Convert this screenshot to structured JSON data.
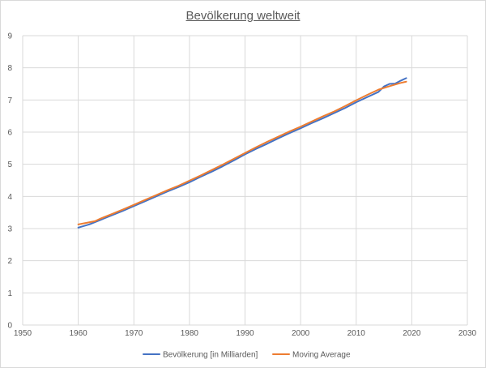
{
  "chart_data": {
    "type": "line",
    "title": "Bevölkerung weltweit",
    "xlabel": "",
    "ylabel": "",
    "xlim": [
      1950,
      2030
    ],
    "ylim": [
      0,
      9
    ],
    "x_ticks": [
      1950,
      1960,
      1970,
      1980,
      1990,
      2000,
      2010,
      2020,
      2030
    ],
    "y_ticks": [
      0,
      1,
      2,
      3,
      4,
      5,
      6,
      7,
      8,
      9
    ],
    "grid": true,
    "legend_position": "bottom",
    "series": [
      {
        "name": "Bevölkerung [in Milliarden]",
        "color": "#4472C4",
        "x": [
          1960,
          1962,
          1964,
          1966,
          1968,
          1970,
          1972,
          1974,
          1976,
          1978,
          1980,
          1982,
          1984,
          1986,
          1988,
          1990,
          1992,
          1994,
          1996,
          1998,
          2000,
          2002,
          2004,
          2006,
          2008,
          2010,
          2012,
          2014,
          2015,
          2016,
          2017,
          2018,
          2019
        ],
        "y": [
          3.03,
          3.13,
          3.27,
          3.41,
          3.55,
          3.7,
          3.85,
          4.0,
          4.15,
          4.29,
          4.44,
          4.61,
          4.77,
          4.94,
          5.12,
          5.31,
          5.48,
          5.64,
          5.81,
          5.97,
          6.12,
          6.28,
          6.43,
          6.59,
          6.75,
          6.93,
          7.09,
          7.25,
          7.42,
          7.5,
          7.51,
          7.6,
          7.68
        ]
      },
      {
        "name": "Moving Average",
        "color": "#ED7D31",
        "x": [
          1960,
          1963,
          1964,
          1966,
          1968,
          1970,
          1972,
          1974,
          1976,
          1978,
          1980,
          1982,
          1984,
          1986,
          1988,
          1990,
          1992,
          1994,
          1996,
          1998,
          2000,
          2002,
          2004,
          2006,
          2008,
          2010,
          2012,
          2014,
          2016,
          2018,
          2019
        ],
        "y": [
          3.13,
          3.23,
          3.31,
          3.45,
          3.59,
          3.74,
          3.89,
          4.04,
          4.19,
          4.33,
          4.49,
          4.65,
          4.82,
          4.99,
          5.17,
          5.35,
          5.53,
          5.7,
          5.86,
          6.02,
          6.17,
          6.33,
          6.49,
          6.64,
          6.81,
          6.99,
          7.16,
          7.32,
          7.43,
          7.53,
          7.57
        ]
      }
    ]
  }
}
